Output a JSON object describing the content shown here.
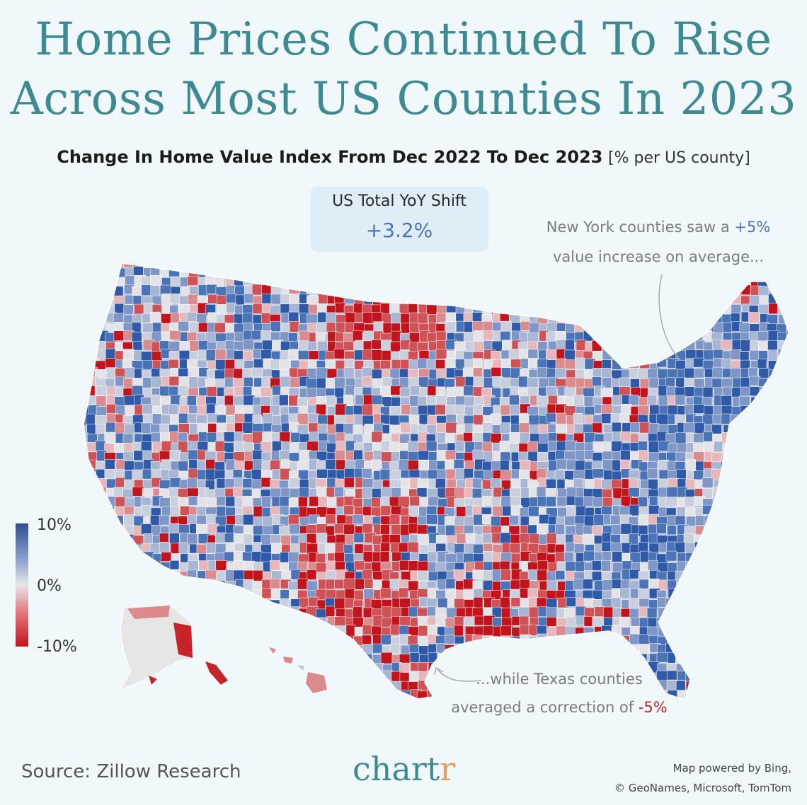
{
  "title_line1": "Home Prices Continued To Rise",
  "title_line2": "Across Most US Counties In 2023",
  "subtitle_main": "Change In Home Value Index From Dec 2022 To Dec 2023",
  "subtitle_unit": "[% per US county]",
  "kpi": {
    "label": "US Total YoY Shift",
    "value": "+3.2%"
  },
  "annotations": {
    "ny": {
      "text_before": "New York counties saw a ",
      "value": "+5%",
      "text_after": "value increase on average..."
    },
    "tx": {
      "text_before": "...while Texas counties",
      "text_mid": "averaged a correction of ",
      "value": "-5%"
    }
  },
  "legend": {
    "max": "10%",
    "mid": "0%",
    "min": "-10%"
  },
  "source": "Source: Zillow Research",
  "brand": {
    "main": "chart",
    "accent": "r"
  },
  "credit": {
    "line1": "Map powered by Bing,",
    "line2": "© GeoNames, Microsoft, TomTom"
  },
  "colors": {
    "title": "#3e8a93",
    "positive": "#4a74b6",
    "negative": "#c0262b",
    "background": "#f1f8fb"
  }
}
